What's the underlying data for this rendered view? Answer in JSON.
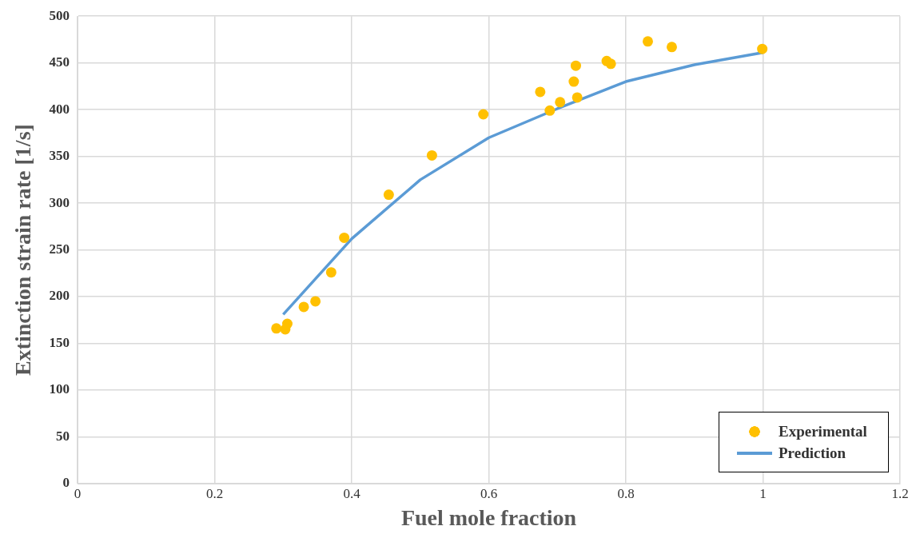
{
  "chart_data": {
    "type": "scatter",
    "xlabel": "Fuel mole fraction",
    "ylabel": "Extinction strain rate [1/s]",
    "xlim": [
      0,
      1.2
    ],
    "xticks": [
      0,
      0.2,
      0.4,
      0.6,
      0.8,
      1,
      1.2
    ],
    "ylim": [
      0,
      500
    ],
    "yticks": [
      0,
      50,
      100,
      150,
      200,
      250,
      300,
      350,
      400,
      450,
      500
    ],
    "grid": true,
    "legend": "bottom right",
    "series": [
      {
        "name": "Experimental",
        "type": "scatter",
        "marker": "circle",
        "color": "#ffc000",
        "x": [
          0.29,
          0.303,
          0.306,
          0.33,
          0.347,
          0.37,
          0.389,
          0.454,
          0.517,
          0.592,
          0.675,
          0.689,
          0.704,
          0.724,
          0.727,
          0.729,
          0.772,
          0.778,
          0.832,
          0.867,
          0.999
        ],
        "values": [
          166,
          165,
          171,
          189,
          195,
          226,
          263,
          309,
          351,
          395,
          419,
          399,
          408,
          430,
          447,
          413,
          452,
          449,
          473,
          467,
          465
        ]
      },
      {
        "name": "Prediction",
        "type": "line",
        "marker": "none",
        "line_style": "solid",
        "color": "#5b9bd5",
        "x": [
          0.3,
          0.4,
          0.5,
          0.6,
          0.7,
          0.8,
          0.9,
          1
        ],
        "values": [
          181,
          262,
          325,
          370,
          401,
          430,
          448,
          461
        ]
      }
    ]
  }
}
